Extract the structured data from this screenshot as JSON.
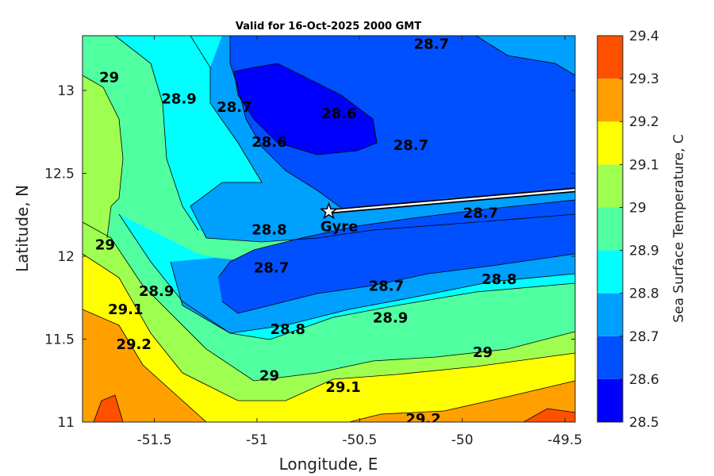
{
  "chart_data": {
    "type": "filled-contour-map",
    "title": "Valid for 16-Oct-2025 2000 GMT",
    "xlabel": "Longitude, E",
    "ylabel": "Latitude, N",
    "xlim": [
      -51.85,
      -49.45
    ],
    "ylim": [
      11.0,
      13.33
    ],
    "x_ticks": [
      -51.5,
      -51,
      -50.5,
      -50,
      -49.5
    ],
    "y_ticks": [
      11,
      11.5,
      12,
      12.5,
      13
    ],
    "x_tick_labels": [
      "-51.5",
      "-51",
      "-50.5",
      "-50",
      "-49.5"
    ],
    "y_tick_labels": [
      "11",
      "11.5",
      "12",
      "12.5",
      "13"
    ],
    "colorbar": {
      "label": "Sea Surface Temperature, C",
      "levels": [
        28.5,
        28.6,
        28.7,
        28.8,
        28.9,
        29.0,
        29.1,
        29.2,
        29.3,
        29.4
      ],
      "tick_labels": [
        "28.5",
        "28.6",
        "28.7",
        "28.8",
        "28.9",
        "29",
        "29.1",
        "29.2",
        "29.3",
        "29.4"
      ],
      "colors": [
        "#0000ff",
        "#0050ff",
        "#00a0ff",
        "#00ffff",
        "#50ff9f",
        "#9fff50",
        "#ffff00",
        "#ffa000",
        "#ff5000"
      ]
    },
    "contour_labels": [
      {
        "text": "28.7",
        "lon": -50.15,
        "lat": 13.28
      },
      {
        "text": "29",
        "lon": -51.72,
        "lat": 13.08
      },
      {
        "text": "28.9",
        "lon": -51.38,
        "lat": 12.95
      },
      {
        "text": "28.7",
        "lon": -51.11,
        "lat": 12.9
      },
      {
        "text": "28.6",
        "lon": -50.6,
        "lat": 12.86
      },
      {
        "text": "28.6",
        "lon": -50.94,
        "lat": 12.69
      },
      {
        "text": "28.7",
        "lon": -50.25,
        "lat": 12.67
      },
      {
        "text": "28.8",
        "lon": -50.94,
        "lat": 12.16
      },
      {
        "text": "28.7",
        "lon": -49.91,
        "lat": 12.26
      },
      {
        "text": "29",
        "lon": -51.74,
        "lat": 12.07
      },
      {
        "text": "28.7",
        "lon": -50.93,
        "lat": 11.93
      },
      {
        "text": "28.9",
        "lon": -51.49,
        "lat": 11.79
      },
      {
        "text": "28.7",
        "lon": -50.37,
        "lat": 11.82
      },
      {
        "text": "28.8",
        "lon": -49.82,
        "lat": 11.86
      },
      {
        "text": "29.1",
        "lon": -51.64,
        "lat": 11.68
      },
      {
        "text": "28.9",
        "lon": -50.35,
        "lat": 11.63
      },
      {
        "text": "28.8",
        "lon": -50.85,
        "lat": 11.56
      },
      {
        "text": "29.2",
        "lon": -51.6,
        "lat": 11.47
      },
      {
        "text": "29",
        "lon": -49.9,
        "lat": 11.42
      },
      {
        "text": "29",
        "lon": -50.94,
        "lat": 11.28
      },
      {
        "text": "29.1",
        "lon": -50.58,
        "lat": 11.21
      },
      {
        "text": "29.2",
        "lon": -50.19,
        "lat": 11.02
      }
    ],
    "marker": {
      "label": "Gyre",
      "lon": -50.65,
      "lat": 12.27,
      "symbol": "star"
    },
    "track": [
      {
        "lon": -50.65,
        "lat": 12.27
      },
      {
        "lon": -49.45,
        "lat": 12.4
      }
    ]
  }
}
